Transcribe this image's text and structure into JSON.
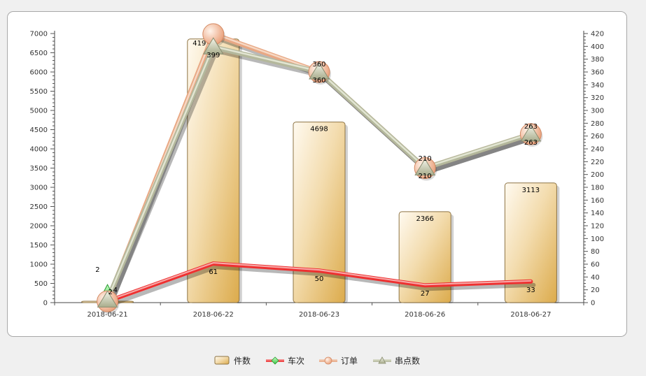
{
  "chart_data": {
    "type": "bar",
    "categories": [
      "2018-06-21",
      "2018-06-22",
      "2018-06-23",
      "2018-06-26",
      "2018-06-27"
    ],
    "left_axis": {
      "ylim": [
        0,
        7000
      ],
      "major_step": 500
    },
    "right_axis": {
      "ylim": [
        0,
        420
      ],
      "major_step": 20
    },
    "series": [
      {
        "name": "件数",
        "kind": "bar",
        "axis": "left",
        "values": [
          24,
          6858,
          4698,
          2366,
          3113
        ],
        "labels": [
          "",
          "",
          "4698",
          "2366",
          "3113"
        ],
        "color": "#e2b45c"
      },
      {
        "name": "车次",
        "kind": "line",
        "axis": "right",
        "values": [
          2,
          61,
          50,
          27,
          33
        ],
        "labels": [
          "2",
          "61",
          "50",
          "27",
          "33"
        ],
        "color": "#ee3030"
      },
      {
        "name": "订单",
        "kind": "line",
        "axis": "right",
        "values": [
          2,
          419,
          360,
          210,
          263
        ],
        "labels": [
          "2",
          "419",
          "360",
          "210",
          "263"
        ],
        "color": "#e8a884"
      },
      {
        "name": "串点数",
        "kind": "line",
        "axis": "right",
        "values": [
          4,
          399,
          360,
          210,
          263
        ],
        "labels": [
          "4",
          "399",
          "360",
          "210",
          "263"
        ],
        "color": "#b4b89c"
      }
    ],
    "grid": false,
    "legend_position": "bottom-center"
  }
}
